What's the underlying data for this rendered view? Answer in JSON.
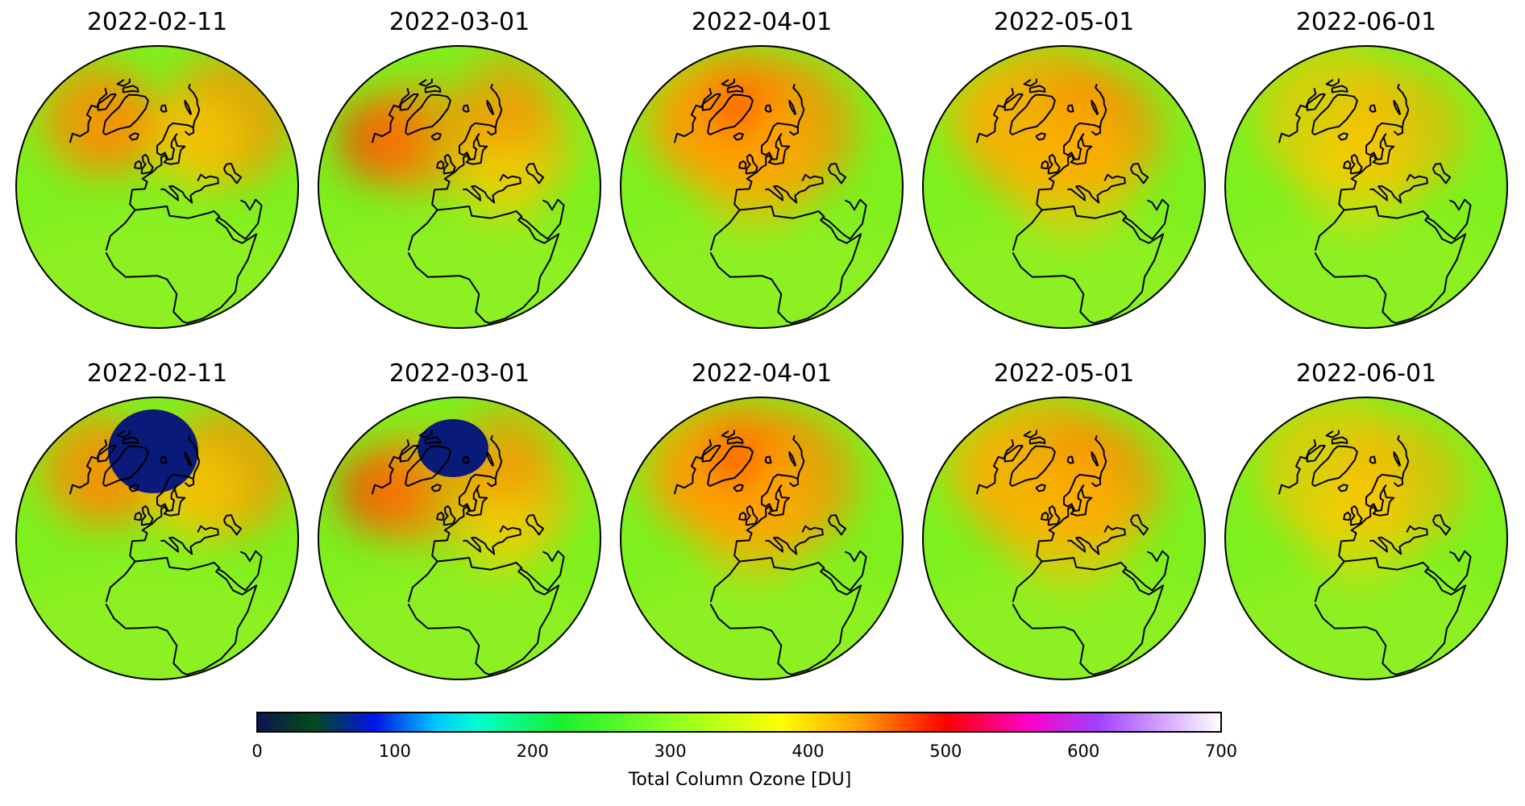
{
  "rows": [
    {
      "name": "row-1",
      "panels": [
        {
          "date": "2022-02-11",
          "variant": 0
        },
        {
          "date": "2022-03-01",
          "variant": 1
        },
        {
          "date": "2022-04-01",
          "variant": 2
        },
        {
          "date": "2022-05-01",
          "variant": 3
        },
        {
          "date": "2022-06-01",
          "variant": 4
        }
      ]
    },
    {
      "name": "row-2",
      "panels": [
        {
          "date": "2022-02-11",
          "variant": 0,
          "hole": true
        },
        {
          "date": "2022-03-01",
          "variant": 1,
          "hole": true
        },
        {
          "date": "2022-04-01",
          "variant": 2
        },
        {
          "date": "2022-05-01",
          "variant": 3
        },
        {
          "date": "2022-06-01",
          "variant": 4
        }
      ]
    }
  ],
  "colorbar": {
    "label": "Total Column Ozone [DU]",
    "min": 0,
    "max": 700,
    "ticks": [
      "0",
      "100",
      "200",
      "300",
      "400",
      "500",
      "600",
      "700"
    ],
    "stops": [
      {
        "value": 0,
        "color": "#0a1450"
      },
      {
        "value": 40,
        "color": "#064a1a"
      },
      {
        "value": 85,
        "color": "#0014e6"
      },
      {
        "value": 130,
        "color": "#00c8ff"
      },
      {
        "value": 160,
        "color": "#00ffd0"
      },
      {
        "value": 220,
        "color": "#18f030"
      },
      {
        "value": 300,
        "color": "#8cff20"
      },
      {
        "value": 380,
        "color": "#ffff00"
      },
      {
        "value": 440,
        "color": "#ff9a00"
      },
      {
        "value": 500,
        "color": "#ff0000"
      },
      {
        "value": 560,
        "color": "#ff00c8"
      },
      {
        "value": 610,
        "color": "#a040ff"
      },
      {
        "value": 700,
        "color": "#ffffff"
      }
    ]
  },
  "colors": {
    "ocean_base": "#7ef01e",
    "high_ozone": "#ff8a00",
    "very_high_ozone": "#ff1e00",
    "ozone_hole": "#0a1a78",
    "coastline": "#000000"
  }
}
